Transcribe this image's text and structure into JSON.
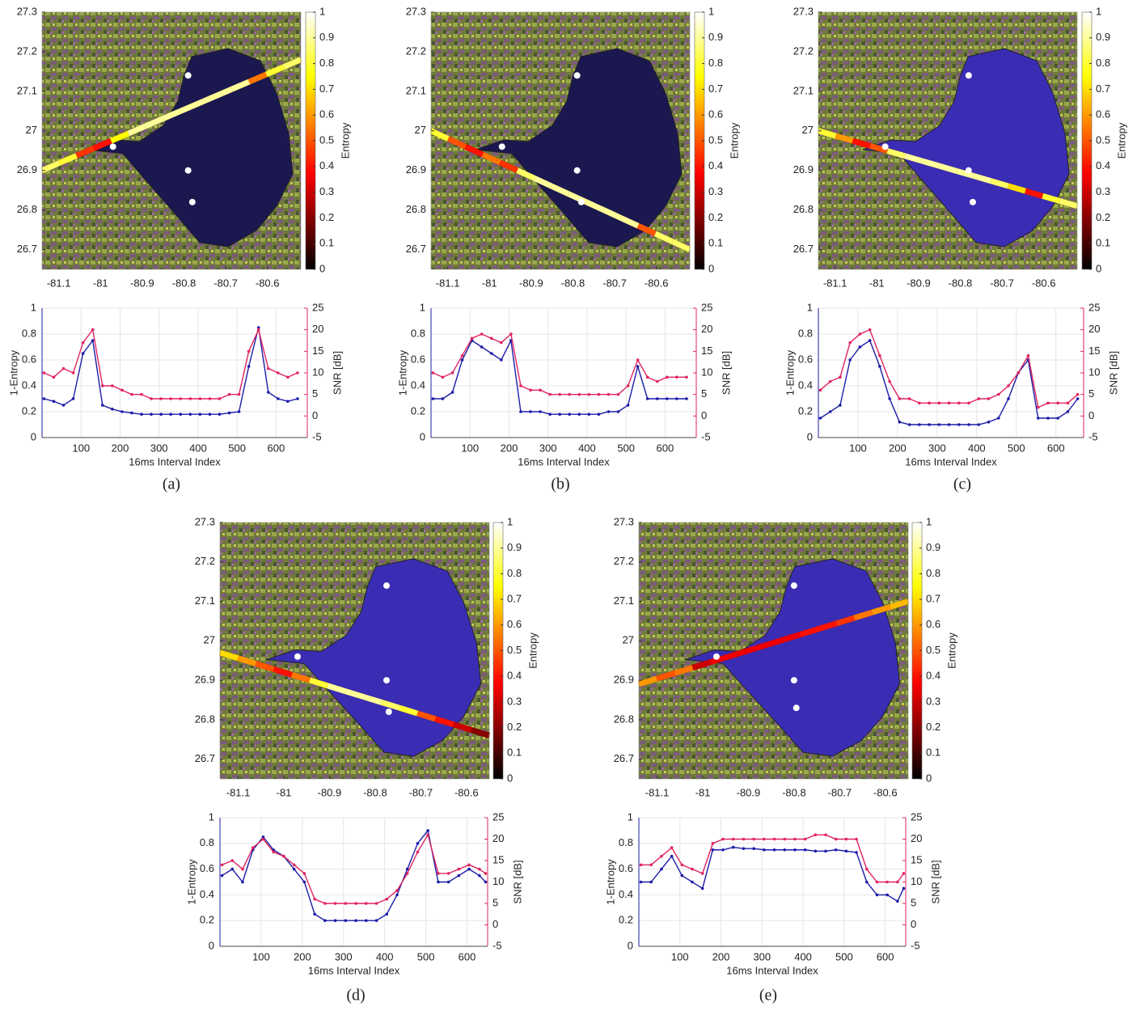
{
  "chart_data": [
    {
      "type": "map",
      "xlim": [
        -81.14,
        -80.52
      ],
      "ylim": [
        26.65,
        27.3
      ],
      "xticks": [
        -81.1,
        -81,
        -80.9,
        -80.8,
        -80.7,
        -80.6
      ],
      "yticks": [
        26.7,
        26.8,
        26.9,
        27,
        27.1,
        27.2,
        27.3
      ],
      "colorbar_label": "Entropy",
      "clim": [
        0,
        1
      ],
      "cticks": [
        0,
        0.1,
        0.2,
        0.3,
        0.4,
        0.5,
        0.6,
        0.7,
        0.8,
        0.9,
        1
      ],
      "lake_color": "#1b1850",
      "track": {
        "x": [
          -81.14,
          -80.52
        ],
        "y": [
          26.9,
          27.18
        ],
        "entropy": [
          0.85,
          0.8,
          0.45,
          0.4,
          0.75,
          0.9,
          0.9,
          0.9,
          0.9,
          0.9,
          0.9,
          0.9,
          0.55,
          0.8,
          0.85
        ]
      },
      "points": {
        "x": [
          -80.79,
          -80.97,
          -80.79,
          -80.78
        ],
        "y": [
          27.14,
          26.96,
          26.9,
          26.82
        ]
      }
    },
    {
      "type": "line",
      "xlabel": "16ms Interval Index",
      "ylabel": "1-Entropy",
      "y2label": "SNR [dB]",
      "xlim": [
        0,
        680
      ],
      "xticks": [
        100,
        200,
        300,
        400,
        500,
        600
      ],
      "ylim": [
        0,
        1
      ],
      "yticks": [
        0,
        0.2,
        0.4,
        0.6,
        0.8,
        1
      ],
      "y2lim": [
        -5,
        25
      ],
      "y2ticks": [
        -5,
        0,
        5,
        10,
        15,
        20,
        25
      ],
      "x": [
        5,
        30,
        55,
        80,
        105,
        130,
        155,
        180,
        205,
        230,
        255,
        280,
        305,
        330,
        355,
        380,
        405,
        430,
        455,
        480,
        505,
        530,
        555,
        580,
        605,
        630,
        655
      ],
      "series": [
        {
          "color": "#1c1ca8",
          "values": [
            0.3,
            0.28,
            0.25,
            0.3,
            0.65,
            0.75,
            0.25,
            0.22,
            0.2,
            0.19,
            0.18,
            0.18,
            0.18,
            0.18,
            0.18,
            0.18,
            0.18,
            0.18,
            0.18,
            0.19,
            0.2,
            0.55,
            0.85,
            0.35,
            0.3,
            0.28,
            0.3
          ]
        },
        {
          "color": "#e0245e",
          "axis": "y2",
          "values": [
            10,
            9,
            11,
            10,
            17,
            20,
            7,
            7,
            6,
            5,
            5,
            4,
            4,
            4,
            4,
            4,
            4,
            4,
            4,
            5,
            5,
            15,
            20,
            11,
            10,
            9,
            10
          ]
        }
      ]
    },
    {
      "type": "map",
      "xlim": [
        -81.14,
        -80.52
      ],
      "ylim": [
        26.65,
        27.3
      ],
      "xticks": [
        -81.1,
        -81,
        -80.9,
        -80.8,
        -80.7,
        -80.6
      ],
      "yticks": [
        26.7,
        26.8,
        26.9,
        27,
        27.1,
        27.2,
        27.3
      ],
      "colorbar_label": "Entropy",
      "clim": [
        0,
        1
      ],
      "cticks": [
        0,
        0.1,
        0.2,
        0.3,
        0.4,
        0.5,
        0.6,
        0.7,
        0.8,
        0.9,
        1
      ],
      "lake_color": "#1b1850",
      "track": {
        "x": [
          -81.14,
          -80.52
        ],
        "y": [
          27.0,
          26.7
        ],
        "entropy": [
          0.8,
          0.5,
          0.4,
          0.55,
          0.45,
          0.85,
          0.9,
          0.9,
          0.9,
          0.9,
          0.9,
          0.9,
          0.5,
          0.85,
          0.85
        ]
      },
      "points": {
        "x": [
          -80.79,
          -80.97,
          -80.79,
          -80.78
        ],
        "y": [
          27.14,
          26.96,
          26.9,
          26.82
        ]
      }
    },
    {
      "type": "line",
      "xlabel": "16ms Interval Index",
      "ylabel": "1-Entropy",
      "y2label": "SNR [dB]",
      "xlim": [
        0,
        680
      ],
      "xticks": [
        100,
        200,
        300,
        400,
        500,
        600
      ],
      "ylim": [
        0,
        1
      ],
      "yticks": [
        0,
        0.2,
        0.4,
        0.6,
        0.8,
        1
      ],
      "y2lim": [
        -5,
        25
      ],
      "y2ticks": [
        -5,
        0,
        5,
        10,
        15,
        20,
        25
      ],
      "x": [
        5,
        30,
        55,
        80,
        105,
        130,
        155,
        180,
        205,
        230,
        255,
        280,
        305,
        330,
        355,
        380,
        405,
        430,
        455,
        480,
        505,
        530,
        555,
        580,
        605,
        630,
        655
      ],
      "series": [
        {
          "color": "#1c1ca8",
          "values": [
            0.3,
            0.3,
            0.35,
            0.6,
            0.75,
            0.7,
            0.65,
            0.6,
            0.75,
            0.2,
            0.2,
            0.2,
            0.18,
            0.18,
            0.18,
            0.18,
            0.18,
            0.18,
            0.2,
            0.2,
            0.25,
            0.55,
            0.3,
            0.3,
            0.3,
            0.3,
            0.3
          ]
        },
        {
          "color": "#e0245e",
          "axis": "y2",
          "values": [
            10,
            9,
            10,
            14,
            18,
            19,
            18,
            17,
            19,
            7,
            6,
            6,
            5,
            5,
            5,
            5,
            5,
            5,
            5,
            5,
            7,
            13,
            9,
            8,
            9,
            9,
            9
          ]
        }
      ]
    },
    {
      "type": "map",
      "xlim": [
        -81.14,
        -80.52
      ],
      "ylim": [
        26.65,
        27.3
      ],
      "xticks": [
        -81.1,
        -81,
        -80.9,
        -80.8,
        -80.7,
        -80.6
      ],
      "yticks": [
        26.7,
        26.8,
        26.9,
        27,
        27.1,
        27.2,
        27.3
      ],
      "colorbar_label": "Entropy",
      "clim": [
        0,
        1
      ],
      "cticks": [
        0,
        0.1,
        0.2,
        0.3,
        0.4,
        0.5,
        0.6,
        0.7,
        0.8,
        0.9,
        1
      ],
      "lake_color": "#3a2db4",
      "track": {
        "x": [
          -81.14,
          -80.52
        ],
        "y": [
          27.0,
          26.81
        ],
        "entropy": [
          0.8,
          0.6,
          0.4,
          0.5,
          0.85,
          0.9,
          0.9,
          0.9,
          0.9,
          0.9,
          0.85,
          0.7,
          0.4,
          0.8,
          0.85
        ]
      },
      "points": {
        "x": [
          -80.78,
          -80.98,
          -80.78,
          -80.77
        ],
        "y": [
          27.14,
          26.96,
          26.9,
          26.82
        ]
      }
    },
    {
      "type": "line",
      "xlabel": "16ms Interval Index",
      "ylabel": "1-Entropy",
      "y2label": "SNR [dB]",
      "xlim": [
        0,
        670
      ],
      "xticks": [
        100,
        200,
        300,
        400,
        500,
        600
      ],
      "ylim": [
        0,
        1
      ],
      "yticks": [
        0,
        0.2,
        0.4,
        0.6,
        0.8,
        1
      ],
      "y2lim": [
        -5,
        25
      ],
      "y2ticks": [
        -5,
        0,
        5,
        10,
        15,
        20,
        25
      ],
      "x": [
        5,
        30,
        55,
        80,
        105,
        130,
        155,
        180,
        205,
        230,
        255,
        280,
        305,
        330,
        355,
        380,
        405,
        430,
        455,
        480,
        505,
        530,
        555,
        580,
        605,
        630,
        655
      ],
      "series": [
        {
          "color": "#1c1ca8",
          "values": [
            0.15,
            0.2,
            0.25,
            0.6,
            0.7,
            0.75,
            0.55,
            0.3,
            0.12,
            0.1,
            0.1,
            0.1,
            0.1,
            0.1,
            0.1,
            0.1,
            0.1,
            0.12,
            0.15,
            0.3,
            0.5,
            0.6,
            0.15,
            0.15,
            0.15,
            0.2,
            0.3
          ]
        },
        {
          "color": "#e0245e",
          "axis": "y2",
          "values": [
            6,
            8,
            9,
            17,
            19,
            20,
            14,
            8,
            4,
            4,
            3,
            3,
            3,
            3,
            3,
            3,
            4,
            4,
            5,
            7,
            10,
            14,
            2,
            3,
            3,
            3,
            5
          ]
        }
      ]
    },
    {
      "type": "map",
      "xlim": [
        -81.14,
        -80.55
      ],
      "ylim": [
        26.65,
        27.3
      ],
      "xticks": [
        -81.1,
        -81,
        -80.9,
        -80.8,
        -80.7,
        -80.6
      ],
      "yticks": [
        26.7,
        26.8,
        26.9,
        27,
        27.1,
        27.2,
        27.3
      ],
      "colorbar_label": "Entropy",
      "clim": [
        0,
        1
      ],
      "cticks": [
        0,
        0.1,
        0.2,
        0.3,
        0.4,
        0.5,
        0.6,
        0.7,
        0.8,
        0.9,
        1
      ],
      "lake_color": "#3a2db4",
      "track": {
        "x": [
          -81.14,
          -80.55
        ],
        "y": [
          26.97,
          26.76
        ],
        "entropy": [
          0.7,
          0.6,
          0.5,
          0.4,
          0.55,
          0.8,
          0.9,
          0.9,
          0.9,
          0.85,
          0.8,
          0.5,
          0.4,
          0.3,
          0.2
        ]
      },
      "points": {
        "x": [
          -80.775,
          -80.97,
          -80.775,
          -80.77
        ],
        "y": [
          27.14,
          26.96,
          26.9,
          26.82
        ]
      }
    },
    {
      "type": "line",
      "xlabel": "16ms Interval Index",
      "ylabel": "1-Entropy",
      "y2label": "SNR [dB]",
      "xlim": [
        0,
        650
      ],
      "xticks": [
        100,
        200,
        300,
        400,
        500,
        600
      ],
      "ylim": [
        0,
        1
      ],
      "yticks": [
        0,
        0.2,
        0.4,
        0.6,
        0.8,
        1
      ],
      "y2lim": [
        -5,
        25
      ],
      "y2ticks": [
        -5,
        0,
        5,
        10,
        15,
        20,
        25
      ],
      "x": [
        5,
        30,
        55,
        80,
        105,
        130,
        155,
        180,
        205,
        230,
        255,
        280,
        305,
        330,
        355,
        380,
        405,
        430,
        455,
        480,
        505,
        530,
        555,
        580,
        605,
        630,
        645
      ],
      "series": [
        {
          "color": "#1c1ca8",
          "values": [
            0.55,
            0.6,
            0.5,
            0.75,
            0.85,
            0.75,
            0.7,
            0.6,
            0.5,
            0.25,
            0.2,
            0.2,
            0.2,
            0.2,
            0.2,
            0.2,
            0.25,
            0.4,
            0.6,
            0.8,
            0.9,
            0.5,
            0.5,
            0.55,
            0.6,
            0.55,
            0.5
          ]
        },
        {
          "color": "#e0245e",
          "axis": "y2",
          "values": [
            14,
            15,
            13,
            18,
            20,
            17,
            16,
            14,
            12,
            6,
            5,
            5,
            5,
            5,
            5,
            5,
            6,
            8,
            12,
            17,
            21,
            12,
            12,
            13,
            14,
            13,
            12
          ]
        }
      ]
    },
    {
      "type": "map",
      "xlim": [
        -81.14,
        -80.55
      ],
      "ylim": [
        26.65,
        27.3
      ],
      "xticks": [
        -81.1,
        -81,
        -80.9,
        -80.8,
        -80.7,
        -80.6
      ],
      "yticks": [
        26.7,
        26.8,
        26.9,
        27,
        27.1,
        27.2,
        27.3
      ],
      "colorbar_label": "Entropy",
      "clim": [
        0,
        1
      ],
      "cticks": [
        0,
        0.1,
        0.2,
        0.3,
        0.4,
        0.5,
        0.6,
        0.7,
        0.8,
        0.9,
        1
      ],
      "lake_color": "#3a2db4",
      "track": {
        "x": [
          -81.14,
          -80.55
        ],
        "y": [
          26.89,
          27.1
        ],
        "entropy": [
          0.6,
          0.5,
          0.55,
          0.3,
          0.35,
          0.35,
          0.35,
          0.35,
          0.35,
          0.4,
          0.4,
          0.45,
          0.55,
          0.6,
          0.65
        ]
      },
      "points": {
        "x": [
          -80.8,
          -80.97,
          -80.8,
          -80.795
        ],
        "y": [
          27.14,
          26.96,
          26.9,
          26.83
        ]
      }
    },
    {
      "type": "line",
      "xlabel": "16ms Interval Index",
      "ylabel": "1-Entropy",
      "y2label": "SNR [dB]",
      "xlim": [
        0,
        650
      ],
      "xticks": [
        100,
        200,
        300,
        400,
        500,
        600
      ],
      "ylim": [
        0,
        1
      ],
      "yticks": [
        0,
        0.2,
        0.4,
        0.6,
        0.8,
        1
      ],
      "y2lim": [
        -5,
        25
      ],
      "y2ticks": [
        -5,
        0,
        5,
        10,
        15,
        20,
        25
      ],
      "x": [
        5,
        30,
        55,
        80,
        105,
        130,
        155,
        180,
        205,
        230,
        255,
        280,
        305,
        330,
        355,
        380,
        405,
        430,
        455,
        480,
        505,
        530,
        555,
        580,
        605,
        630,
        645
      ],
      "series": [
        {
          "color": "#1c1ca8",
          "values": [
            0.5,
            0.5,
            0.6,
            0.7,
            0.55,
            0.5,
            0.45,
            0.75,
            0.75,
            0.77,
            0.76,
            0.76,
            0.75,
            0.75,
            0.75,
            0.75,
            0.75,
            0.74,
            0.74,
            0.75,
            0.74,
            0.73,
            0.5,
            0.4,
            0.4,
            0.35,
            0.45
          ]
        },
        {
          "color": "#e0245e",
          "axis": "y2",
          "values": [
            14,
            14,
            16,
            18,
            14,
            13,
            12,
            19,
            20,
            20,
            20,
            20,
            20,
            20,
            20,
            20,
            20,
            21,
            21,
            20,
            20,
            20,
            13,
            10,
            10,
            10,
            12
          ]
        }
      ]
    }
  ],
  "captions": [
    "(a)",
    "(b)",
    "(c)",
    "(d)",
    "(e)"
  ]
}
